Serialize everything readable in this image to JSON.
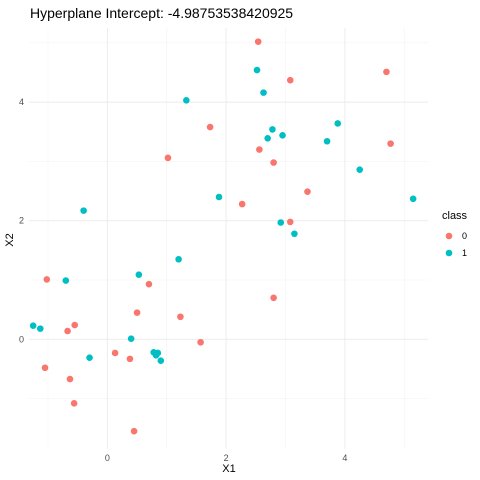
{
  "chart_data": {
    "type": "scatter",
    "title": "Hyperplane Intercept: -4.98753538420925",
    "xlabel": "X1",
    "ylabel": "X2",
    "xlim": [
      -1.32,
      5.4
    ],
    "ylim": [
      -1.85,
      5.25
    ],
    "x_ticks": [
      0,
      2,
      4
    ],
    "y_ticks": [
      0,
      2,
      4
    ],
    "grid": true,
    "legend": {
      "title": "class",
      "position": "right",
      "entries": [
        {
          "label": "0",
          "color": "#F8766D"
        },
        {
          "label": "1",
          "color": "#00BFC4"
        }
      ]
    },
    "series": [
      {
        "name": "0",
        "color": "#F8766D",
        "points": [
          [
            2.54,
            5.02
          ],
          [
            3.08,
            4.37
          ],
          [
            4.7,
            4.51
          ],
          [
            1.73,
            3.58
          ],
          [
            1.02,
            3.06
          ],
          [
            2.56,
            3.2
          ],
          [
            2.8,
            2.98
          ],
          [
            4.77,
            3.3
          ],
          [
            3.37,
            2.49
          ],
          [
            2.27,
            2.28
          ],
          [
            3.08,
            1.98
          ],
          [
            -1.02,
            1.01
          ],
          [
            0.7,
            0.93
          ],
          [
            0.5,
            0.45
          ],
          [
            1.23,
            0.38
          ],
          [
            2.8,
            0.7
          ],
          [
            -0.55,
            0.24
          ],
          [
            -0.67,
            0.14
          ],
          [
            0.38,
            -0.33
          ],
          [
            0.13,
            -0.23
          ],
          [
            1.57,
            -0.05
          ],
          [
            -1.05,
            -0.48
          ],
          [
            -0.63,
            -0.67
          ],
          [
            -0.56,
            -1.08
          ],
          [
            0.45,
            -1.55
          ]
        ]
      },
      {
        "name": "1",
        "color": "#00BFC4",
        "points": [
          [
            2.52,
            4.54
          ],
          [
            1.33,
            4.03
          ],
          [
            2.63,
            4.16
          ],
          [
            3.88,
            3.64
          ],
          [
            2.78,
            3.54
          ],
          [
            2.95,
            3.44
          ],
          [
            2.7,
            3.39
          ],
          [
            3.7,
            3.34
          ],
          [
            4.25,
            2.86
          ],
          [
            1.88,
            2.4
          ],
          [
            5.15,
            2.37
          ],
          [
            -0.4,
            2.17
          ],
          [
            2.92,
            1.97
          ],
          [
            3.15,
            1.78
          ],
          [
            1.2,
            1.35
          ],
          [
            0.53,
            1.09
          ],
          [
            -0.7,
            0.99
          ],
          [
            -1.25,
            0.23
          ],
          [
            -1.13,
            0.18
          ],
          [
            0.4,
            0.01
          ],
          [
            0.78,
            -0.22
          ],
          [
            0.85,
            -0.23
          ],
          [
            0.82,
            -0.27
          ],
          [
            0.9,
            -0.36
          ],
          [
            -0.3,
            -0.31
          ]
        ]
      }
    ]
  }
}
